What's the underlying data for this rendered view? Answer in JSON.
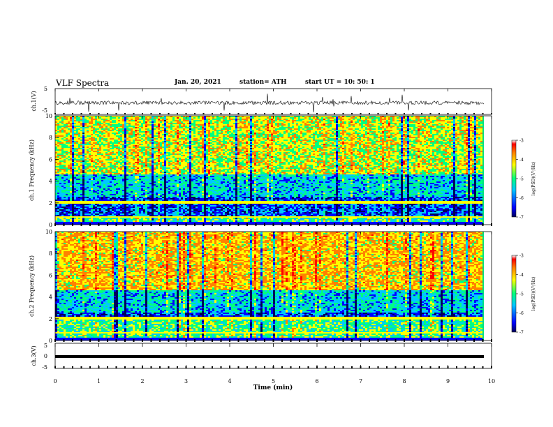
{
  "header": {
    "title": "VLF Spectra",
    "date": "Jan. 20, 2021",
    "station": "station= ATH",
    "start": "start UT = 10: 50: 1"
  },
  "chart_data": [
    {
      "type": "line",
      "panel": "ch1-waveform",
      "ylabel": "ch.1(V)",
      "ylim": [
        -5,
        5
      ],
      "yticks": [
        "5",
        "-5"
      ],
      "xlim": [
        0,
        10
      ],
      "description_series": {
        "name": "",
        "typical_level": -0.5,
        "noise_range": [
          -5,
          5
        ]
      }
    },
    {
      "type": "heatmap",
      "panel": "ch1-spectrogram",
      "ylabel": "ch.1 Frequency (kHz)",
      "ylim": [
        0,
        10
      ],
      "yticks": [
        "0",
        "2",
        "4",
        "6",
        "8",
        "10"
      ],
      "xlim": [
        0,
        10
      ],
      "colorbar": {
        "label": "log(PSD)(V²/Hz)",
        "range": [
          -7,
          -3
        ],
        "ticks": [
          "-3",
          "-4",
          "-5",
          "-6",
          "-7"
        ]
      }
    },
    {
      "type": "heatmap",
      "panel": "ch2-spectrogram",
      "ylabel": "ch.2 Frequency (kHz)",
      "ylim": [
        0,
        10
      ],
      "yticks": [
        "0",
        "2",
        "4",
        "6",
        "8",
        "10"
      ],
      "xlim": [
        0,
        10
      ],
      "colorbar": {
        "label": "log(PSD)(V²/Hz)",
        "range": [
          -7,
          -3
        ],
        "ticks": [
          "-3",
          "-4",
          "-5",
          "-6",
          "-7"
        ]
      }
    },
    {
      "type": "line",
      "panel": "ch3-waveform",
      "ylabel": "ch.3(V)",
      "ylim": [
        -5,
        5
      ],
      "yticks": [
        "5",
        "0",
        "-5"
      ],
      "xlim": [
        0,
        10
      ],
      "description_series": {
        "name": "",
        "typical_level": 0
      }
    }
  ],
  "xaxis": {
    "label": "Time (min)",
    "ticks": [
      "0",
      "1",
      "2",
      "3",
      "4",
      "5",
      "6",
      "7",
      "8",
      "9",
      "10"
    ]
  },
  "colors": {
    "colormap": [
      "#00005a",
      "#0000ff",
      "#00c8ff",
      "#00ff80",
      "#ffff00",
      "#ff8000",
      "#ff0000"
    ]
  }
}
